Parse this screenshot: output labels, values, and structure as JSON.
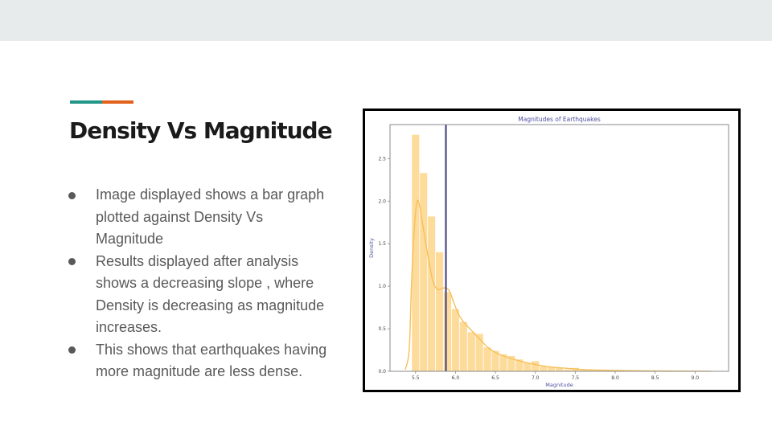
{
  "slide": {
    "title": "Density Vs Magnitude",
    "bullets": [
      "Image displayed shows a bar graph plotted against Density Vs Magnitude",
      "Results displayed after analysis shows a decreasing slope , where Density is decreasing as magnitude increases.",
      "This shows that earthquakes having more magnitude are less dense."
    ]
  },
  "colors": {
    "top_band": "#e8ebec",
    "accent_teal": "#23968a",
    "accent_orange": "#e0621c",
    "bar": "#fdd58a",
    "kde": "#f5c05a",
    "vline": "#4b4a87",
    "chart_text": "#4d4f9e"
  },
  "chart_data": {
    "type": "bar",
    "title": "Magnitudes of Earthquakes",
    "xlabel": "Magnitude",
    "ylabel": "Density",
    "xlim": [
      5.18,
      9.42
    ],
    "ylim": [
      0,
      2.9
    ],
    "xticks": [
      5.5,
      6.0,
      6.5,
      7.0,
      7.5,
      8.0,
      8.5,
      9.0
    ],
    "xtick_labels": [
      "5.5",
      "6.0",
      "6.5",
      "7.0",
      "7.5",
      "8.0",
      "8.5",
      "9.0"
    ],
    "yticks": [
      0,
      0.5,
      1.0,
      1.5,
      2.0,
      2.5
    ],
    "ytick_labels": [
      "0.0",
      "0.5",
      "1.0",
      "1.5",
      "2.0",
      "2.5"
    ],
    "bin_width": 0.1,
    "bins": [
      {
        "x": 5.5,
        "density": 2.78
      },
      {
        "x": 5.6,
        "density": 2.33
      },
      {
        "x": 5.7,
        "density": 1.82
      },
      {
        "x": 5.8,
        "density": 1.4
      },
      {
        "x": 5.9,
        "density": 0.93
      },
      {
        "x": 6.0,
        "density": 0.73
      },
      {
        "x": 6.1,
        "density": 0.58
      },
      {
        "x": 6.2,
        "density": 0.46
      },
      {
        "x": 6.3,
        "density": 0.44
      },
      {
        "x": 6.4,
        "density": 0.28
      },
      {
        "x": 6.5,
        "density": 0.24
      },
      {
        "x": 6.6,
        "density": 0.2
      },
      {
        "x": 6.7,
        "density": 0.18
      },
      {
        "x": 6.8,
        "density": 0.14
      },
      {
        "x": 6.9,
        "density": 0.1
      },
      {
        "x": 7.0,
        "density": 0.12
      },
      {
        "x": 7.1,
        "density": 0.06
      },
      {
        "x": 7.2,
        "density": 0.05
      },
      {
        "x": 7.3,
        "density": 0.04
      },
      {
        "x": 7.4,
        "density": 0.02
      },
      {
        "x": 7.5,
        "density": 0.04
      },
      {
        "x": 7.6,
        "density": 0.02
      },
      {
        "x": 7.7,
        "density": 0.015
      },
      {
        "x": 7.8,
        "density": 0.01
      },
      {
        "x": 7.9,
        "density": 0.01
      },
      {
        "x": 8.0,
        "density": 0.01
      },
      {
        "x": 8.1,
        "density": 0.008
      },
      {
        "x": 8.2,
        "density": 0.006
      },
      {
        "x": 8.3,
        "density": 0.005
      }
    ],
    "kde": {
      "x": [
        5.37,
        5.42,
        5.45,
        5.49,
        5.52,
        5.55,
        5.58,
        5.62,
        5.67,
        5.72,
        5.78,
        5.85,
        5.92,
        5.99,
        6.05,
        6.12,
        6.2,
        6.3,
        6.42,
        6.55,
        6.7,
        6.85,
        7.0,
        7.2,
        7.4,
        7.6,
        7.8,
        8.0,
        8.3,
        8.6,
        9.0,
        9.2
      ],
      "y": [
        0.02,
        0.25,
        1.05,
        1.75,
        2.0,
        1.95,
        1.78,
        1.55,
        1.28,
        1.05,
        0.96,
        0.98,
        0.95,
        0.78,
        0.65,
        0.56,
        0.48,
        0.38,
        0.27,
        0.2,
        0.15,
        0.11,
        0.08,
        0.05,
        0.035,
        0.02,
        0.015,
        0.01,
        0.006,
        0.004,
        0.002,
        0.001
      ]
    },
    "vline_x": 5.88
  }
}
